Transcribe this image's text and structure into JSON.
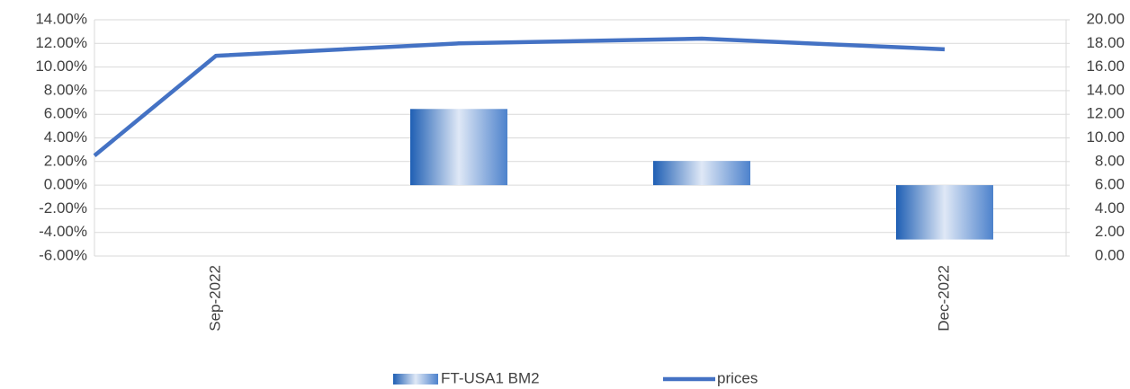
{
  "chart_data": {
    "type": "bar-line",
    "categories": [
      null,
      "Sep-2022",
      null,
      null,
      "Dec-2022"
    ],
    "series": [
      {
        "name": "FT-USA1 BM2",
        "color": "#2f6bbf",
        "type": "bar",
        "values": [
          null,
          null,
          6.45,
          2.05,
          -4.6
        ]
      },
      {
        "name": "prices",
        "color": "#4472c4",
        "type": "line",
        "axis": "y2",
        "values": [
          8.5,
          16.95,
          18.0,
          18.4,
          17.5
        ]
      }
    ],
    "ylim": [
      -6,
      14
    ],
    "yticks": [
      {
        "value": -6,
        "label": "-6.00%"
      },
      {
        "value": -4,
        "label": "-4.00%"
      },
      {
        "value": -2,
        "label": "-2.00%"
      },
      {
        "value": 0,
        "label": "0.00%"
      },
      {
        "value": 2,
        "label": "2.00%"
      },
      {
        "value": 4,
        "label": "4.00%"
      },
      {
        "value": 6,
        "label": "6.00%"
      },
      {
        "value": 8,
        "label": "8.00%"
      },
      {
        "value": 10,
        "label": "10.00%"
      },
      {
        "value": 12,
        "label": "12.00%"
      },
      {
        "value": 14,
        "label": "14.00%"
      }
    ],
    "y2lim": [
      0,
      20
    ],
    "y2ticks": [
      {
        "value": 0,
        "label": "0.00"
      },
      {
        "value": 2,
        "label": "2.00"
      },
      {
        "value": 4,
        "label": "4.00"
      },
      {
        "value": 6,
        "label": "6.00"
      },
      {
        "value": 8,
        "label": "8.00"
      },
      {
        "value": 10,
        "label": "10.00"
      },
      {
        "value": 12,
        "label": "12.00"
      },
      {
        "value": 14,
        "label": "14.00"
      },
      {
        "value": 16,
        "label": "16.00"
      },
      {
        "value": 18,
        "label": "18.00"
      },
      {
        "value": 20,
        "label": "20.00"
      }
    ],
    "grid": true,
    "legend": "bottom"
  }
}
